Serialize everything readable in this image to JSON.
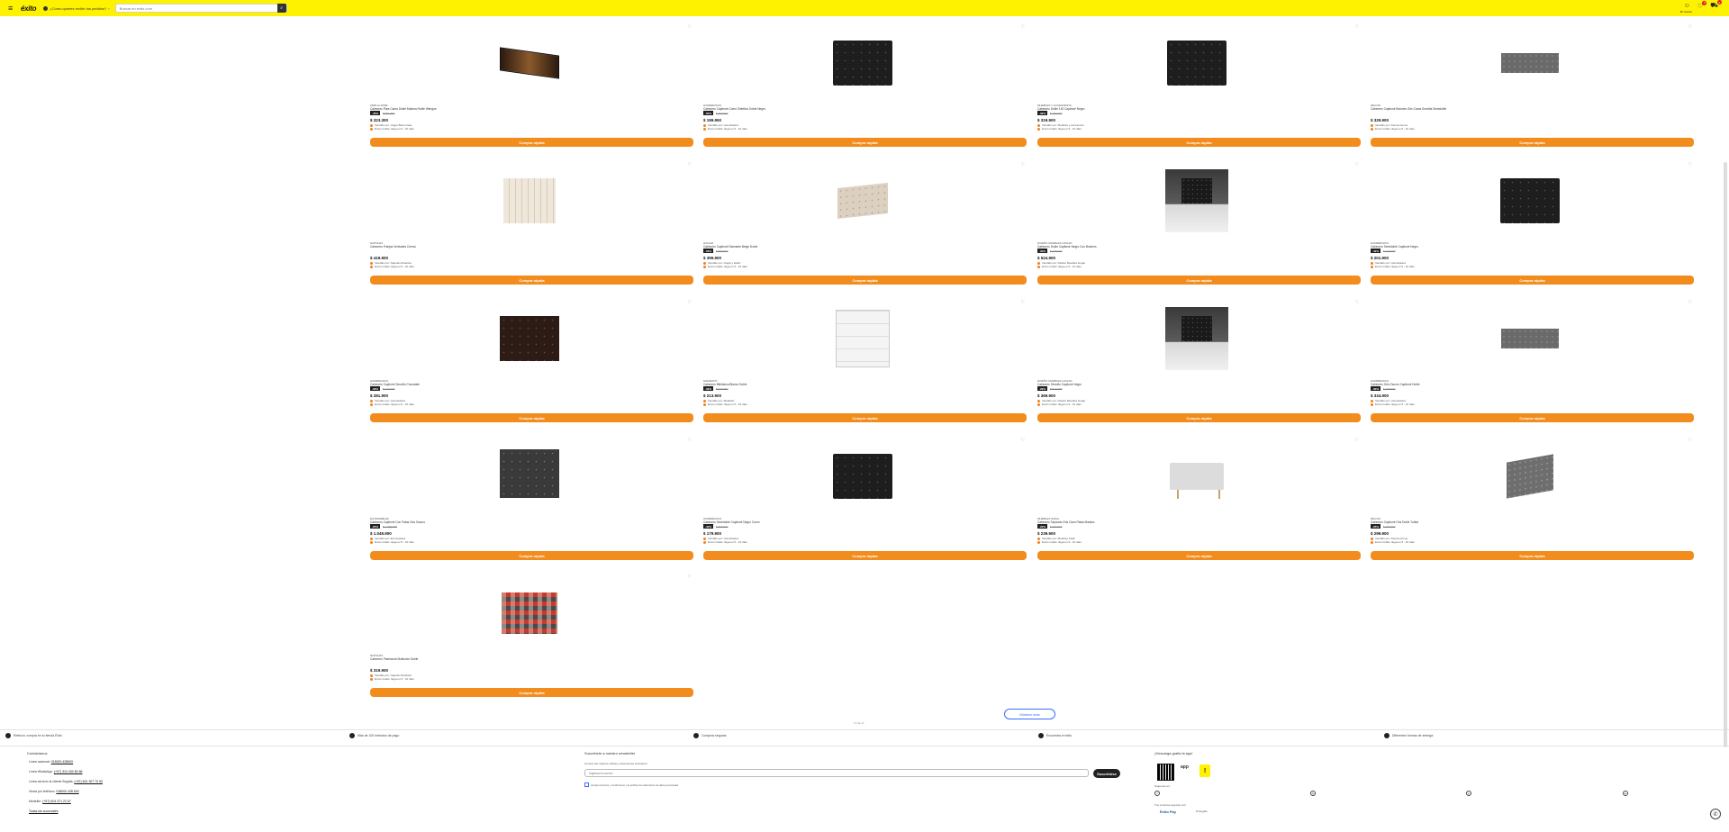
{
  "header": {
    "logo": "éxito",
    "location": "¿Cómo quieres recibir tus pedidos?",
    "search_placeholder": "Buscar en exito.com",
    "account_label": "Mi cuenta",
    "list_badge": "0",
    "cart_badge": "0"
  },
  "products": [
    {
      "brand": "VERLA HOME",
      "name": "Cabecero Para Cama Doble Madera Roble Wengue",
      "discount": "-45%",
      "old": "$ 591.800",
      "price": "$ 323.300",
      "seller": "Vendido por: Hogar Bello Casa",
      "ship": "Envío Gratis: llega en 5 - 10 días",
      "img": "hb-wood",
      "buy": "Compra rápida"
    },
    {
      "brand": "HOMEBASICS",
      "name": "Cabecero Capitoné Cuero Sintético Doble Negro",
      "discount": "-50%",
      "old": "$ 399.900",
      "price": "$ 199.950",
      "seller": "Vendido por: Homebasics",
      "ship": "Envío Gratis: llega en 5 - 10 días",
      "img": "hb-dark",
      "buy": "Compra rápida"
    },
    {
      "brand": "MUEBLES Y ACCESORIOS",
      "name": "Cabecero Doble 140 Capitoné Negro",
      "discount": "-36%",
      "old": "$ 499.900",
      "price": "$ 319.900",
      "seller": "Vendido por: Muebles y Accesorios",
      "ship": "Envío Gratis: llega en 5 - 10 días",
      "img": "hb-dark",
      "buy": "Compra rápida"
    },
    {
      "brand": "DECOR",
      "name": "Cabecero Capitoné Botones Gris Cama Sencilla Semidoble",
      "discount": "",
      "old": "",
      "price": "$ 329.900",
      "seller": "Vendido por: Decora Home",
      "ship": "Envío Gratis: llega en 5 - 10 días",
      "img": "hb-gray",
      "buy": "Compra rápida"
    },
    {
      "brand": "NAPOLES",
      "name": "Cabecero Franjas Verticales Crema",
      "discount": "",
      "old": "",
      "price": "$ 419.900",
      "seller": "Vendido por: Napoles Muebles",
      "ship": "Envío Gratis: llega en 5 - 10 días",
      "img": "hb-cream",
      "buy": "Compra rápida"
    },
    {
      "brand": "HOGAR",
      "name": "Cabecero Capitoné Diamante Beige Doble",
      "discount": "-33%",
      "old": "$ 599.900",
      "price": "$ 399.900",
      "seller": "Vendido por: Hogar y Estilo",
      "ship": "Envío Gratis: llega en 5 - 10 días",
      "img": "hb-beige",
      "buy": "Compra rápida"
    },
    {
      "brand": "DISEÑO MUEBLES HOGAR",
      "name": "Cabecero Doble Capitoné Negro Con Botones",
      "discount": "-30%",
      "old": "$ 749.900",
      "price": "$ 524.900",
      "seller": "Vendido por: Diseño Muebles Hogar",
      "ship": "Envío Gratis: llega en 5 - 10 días",
      "img": "hb-room",
      "buy": "Compra rápida"
    },
    {
      "brand": "HOMEBASICS",
      "name": "Cabecero Semidoble Capitoné Negro",
      "discount": "-42%",
      "old": "$ 349.900",
      "price": "$ 201.900",
      "seller": "Vendido por: Homebasics",
      "ship": "Envío Gratis: llega en 5 - 10 días",
      "img": "hb-dark",
      "buy": "Compra rápida"
    },
    {
      "brand": "HOMEBASICS",
      "name": "Cabecero Capitoné Sencillo Chocolate",
      "discount": "-33%",
      "old": "$ 419.900",
      "price": "$ 281.900",
      "seller": "Vendido por: Homebasics",
      "ship": "Envío Gratis: llega en 5 - 10 días",
      "img": "hb-brown",
      "buy": "Compra rápida"
    },
    {
      "brand": "MADERKIT",
      "name": "Cabecero Biblioteca Blanco Doble",
      "discount": "-39%",
      "old": "$ 349.900",
      "price": "$ 213.900",
      "seller": "Vendido por: Maderkit",
      "ship": "Envío Gratis: llega en 5 - 10 días",
      "img": "hb-white",
      "buy": "Compra rápida"
    },
    {
      "brand": "DISEÑO MUEBLES HOGAR",
      "name": "Cabecero Sencillo Capitoné Negro",
      "discount": "-29%",
      "old": "$ 519.900",
      "price": "$ 369.900",
      "seller": "Vendido por: Diseño Muebles Hogar",
      "ship": "Envío Gratis: llega en 5 - 10 días",
      "img": "hb-room",
      "buy": "Compra rápida"
    },
    {
      "brand": "HOMEBASICS",
      "name": "Cabecero Gris Oscuro Capitoné Doble",
      "discount": "-30%",
      "old": "$ 479.900",
      "price": "$ 334.900",
      "seller": "Vendido por: Homebasics",
      "ship": "Envío Gratis: llega en 5 - 10 días",
      "img": "hb-gray",
      "buy": "Compra rápida"
    },
    {
      "brand": "ECOMUEBLES",
      "name": "Cabecero Capitoné Con Patas Gris Oscuro",
      "discount": "-25%",
      "old": "$ 1.399.900",
      "price": "$ 1.049.900",
      "seller": "Vendido por: Ecomuebles",
      "ship": "Envío Gratis: llega en 5 - 10 días",
      "img": "hb-legs",
      "buy": "Compra rápida"
    },
    {
      "brand": "HOMEBASICS",
      "name": "Cabecero Semidoble Capitoné Negro Cuero",
      "discount": "-40%",
      "old": "$ 299.900",
      "price": "$ 179.900",
      "seller": "Vendido por: Homebasics",
      "ship": "Envío Gratis: llega en 5 - 10 días",
      "img": "hb-dark",
      "buy": "Compra rápida"
    },
    {
      "brand": "MUEBLES SOFIA",
      "name": "Cabecero Tapizado Gris Claro Patas Madera",
      "discount": "-20%",
      "old": "$ 299.900",
      "price": "$ 239.900",
      "seller": "Vendido por: Muebles Sofia",
      "ship": "Envío Gratis: llega en 5 - 10 días",
      "img": "hb-light",
      "buy": "Compra rápida"
    },
    {
      "brand": "DECOR",
      "name": "Cabecero Capitoné Gris Doble Tufted",
      "discount": "-25%",
      "old": "$ 399.900",
      "price": "$ 299.900",
      "seller": "Vendido por: Decora Home",
      "ship": "Envío Gratis: llega en 5 - 10 días",
      "img": "hb-tufted",
      "buy": "Compra rápida"
    },
    {
      "brand": "NAPOLES",
      "name": "Cabecero Patchwork Multicolor Doble",
      "discount": "",
      "old": "",
      "price": "$ 319.900",
      "seller": "Vendido por: Napoles Muebles",
      "ship": "Envío Gratis: llega en 5 - 10 días",
      "img": "hb-color",
      "buy": "Compra rápida"
    }
  ],
  "pagination": {
    "more_label": "Mostrar más",
    "count": "17 de 17"
  },
  "features": [
    "Retira tu compra en tu tienda Éxito",
    "Más de 100 métodos de pago",
    "Compras seguras",
    "Encuentra el éxito",
    "Diferentes formas de entrega"
  ],
  "footer": {
    "contact_title": "Contáctanos",
    "contact_rows": [
      {
        "label": "Línea nacional:",
        "value": "018000 428600"
      },
      {
        "label": "Línea WhatsApp:",
        "value": "(+57) 310 400 80 86"
      },
      {
        "label": "Línea servicio al cliente Bogotá:",
        "value": "(+57) 601 307 70 50"
      },
      {
        "label": "Venta por teléfono:",
        "value": "018000 428 600"
      },
      {
        "label": "Medellín:",
        "value": "(+57) 604 371 22 67"
      },
      {
        "label": "",
        "value": "Todas las sucursales"
      }
    ],
    "subscribe_title": "Suscríbete a nuestro newsletter",
    "subscribe_desc": "Conoce las mejores ofertas y descuentos exclusivos",
    "email_placeholder": "Ingresa tu correo",
    "subscribe_button": "Suscribirse",
    "terms": "Acepto términos y condiciones y la política de tratamiento de datos personales",
    "app_title": "¡Descarga gratis la app!",
    "app_label": "app",
    "follow": "Síguenos en:",
    "payments_title": "Tus compras seguras con:",
    "pay1": "Éxito Pay",
    "pay2": "Protegido"
  }
}
